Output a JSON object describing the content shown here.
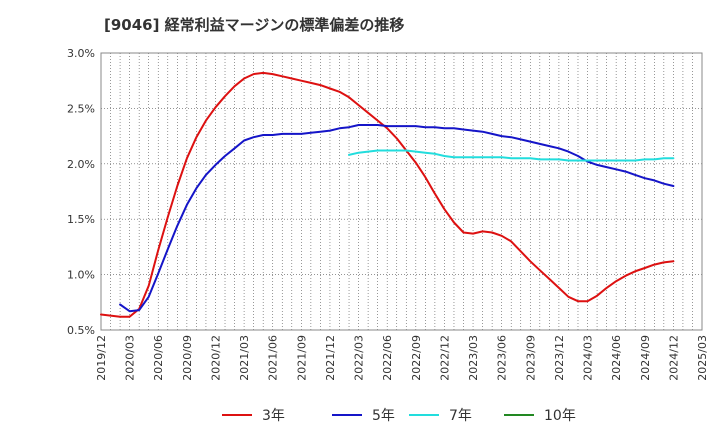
{
  "title": "[9046]  経常利益マージンの標準偏差の推移",
  "chart_data": {
    "type": "line",
    "title": "[9046]  経常利益マージンの標準偏差の推移",
    "xlabel": "",
    "ylabel": "",
    "x_ticks": [
      "2019/12",
      "2020/03",
      "2020/06",
      "2020/09",
      "2020/12",
      "2021/03",
      "2021/06",
      "2021/09",
      "2021/12",
      "2022/03",
      "2022/06",
      "2022/09",
      "2022/12",
      "2023/03",
      "2023/06",
      "2023/09",
      "2023/12",
      "2024/03",
      "2024/06",
      "2024/09",
      "2024/12",
      "2025/03"
    ],
    "y_ticks": [
      "0.5%",
      "1.0%",
      "1.5%",
      "2.0%",
      "2.5%",
      "3.0%"
    ],
    "xlim": [
      "2019/12",
      "2025/03"
    ],
    "ylim": [
      0.5,
      3.0
    ],
    "grid": true,
    "legend_position": "bottom",
    "series": [
      {
        "name": "3年",
        "color": "#dd1111",
        "points": [
          [
            "2019/12",
            0.64
          ],
          [
            "2020/01",
            0.63
          ],
          [
            "2020/02",
            0.62
          ],
          [
            "2020/03",
            0.62
          ],
          [
            "2020/04",
            0.69
          ],
          [
            "2020/05",
            0.9
          ],
          [
            "2020/06",
            1.22
          ],
          [
            "2020/07",
            1.52
          ],
          [
            "2020/08",
            1.8
          ],
          [
            "2020/09",
            2.05
          ],
          [
            "2020/10",
            2.24
          ],
          [
            "2020/11",
            2.39
          ],
          [
            "2020/12",
            2.51
          ],
          [
            "2021/01",
            2.61
          ],
          [
            "2021/02",
            2.7
          ],
          [
            "2021/03",
            2.77
          ],
          [
            "2021/04",
            2.81
          ],
          [
            "2021/05",
            2.82
          ],
          [
            "2021/06",
            2.81
          ],
          [
            "2021/07",
            2.79
          ],
          [
            "2021/08",
            2.77
          ],
          [
            "2021/09",
            2.75
          ],
          [
            "2021/10",
            2.73
          ],
          [
            "2021/11",
            2.71
          ],
          [
            "2021/12",
            2.68
          ],
          [
            "2022/01",
            2.65
          ],
          [
            "2022/02",
            2.6
          ],
          [
            "2022/03",
            2.53
          ],
          [
            "2022/04",
            2.46
          ],
          [
            "2022/05",
            2.39
          ],
          [
            "2022/06",
            2.32
          ],
          [
            "2022/07",
            2.23
          ],
          [
            "2022/08",
            2.12
          ],
          [
            "2022/09",
            2.01
          ],
          [
            "2022/10",
            1.88
          ],
          [
            "2022/11",
            1.73
          ],
          [
            "2022/12",
            1.59
          ],
          [
            "2023/01",
            1.47
          ],
          [
            "2023/02",
            1.38
          ],
          [
            "2023/03",
            1.37
          ],
          [
            "2023/04",
            1.39
          ],
          [
            "2023/05",
            1.38
          ],
          [
            "2023/06",
            1.35
          ],
          [
            "2023/07",
            1.3
          ],
          [
            "2023/08",
            1.21
          ],
          [
            "2023/09",
            1.12
          ],
          [
            "2023/10",
            1.04
          ],
          [
            "2023/11",
            0.96
          ],
          [
            "2023/12",
            0.88
          ],
          [
            "2024/01",
            0.8
          ],
          [
            "2024/02",
            0.76
          ],
          [
            "2024/03",
            0.76
          ],
          [
            "2024/04",
            0.81
          ],
          [
            "2024/05",
            0.88
          ],
          [
            "2024/06",
            0.94
          ],
          [
            "2024/07",
            0.99
          ],
          [
            "2024/08",
            1.03
          ],
          [
            "2024/09",
            1.06
          ],
          [
            "2024/10",
            1.09
          ],
          [
            "2024/11",
            1.11
          ],
          [
            "2024/12",
            1.12
          ]
        ]
      },
      {
        "name": "5年",
        "color": "#1515c8",
        "points": [
          [
            "2020/02",
            0.73
          ],
          [
            "2020/03",
            0.67
          ],
          [
            "2020/04",
            0.68
          ],
          [
            "2020/05",
            0.8
          ],
          [
            "2020/06",
            1.01
          ],
          [
            "2020/07",
            1.23
          ],
          [
            "2020/08",
            1.44
          ],
          [
            "2020/09",
            1.63
          ],
          [
            "2020/10",
            1.78
          ],
          [
            "2020/11",
            1.9
          ],
          [
            "2020/12",
            1.99
          ],
          [
            "2021/01",
            2.07
          ],
          [
            "2021/02",
            2.14
          ],
          [
            "2021/03",
            2.21
          ],
          [
            "2021/04",
            2.24
          ],
          [
            "2021/05",
            2.26
          ],
          [
            "2021/06",
            2.26
          ],
          [
            "2021/07",
            2.27
          ],
          [
            "2021/08",
            2.27
          ],
          [
            "2021/09",
            2.27
          ],
          [
            "2021/10",
            2.28
          ],
          [
            "2021/11",
            2.29
          ],
          [
            "2021/12",
            2.3
          ],
          [
            "2022/01",
            2.32
          ],
          [
            "2022/02",
            2.33
          ],
          [
            "2022/03",
            2.35
          ],
          [
            "2022/04",
            2.35
          ],
          [
            "2022/05",
            2.35
          ],
          [
            "2022/06",
            2.34
          ],
          [
            "2022/07",
            2.34
          ],
          [
            "2022/08",
            2.34
          ],
          [
            "2022/09",
            2.34
          ],
          [
            "2022/10",
            2.33
          ],
          [
            "2022/11",
            2.33
          ],
          [
            "2022/12",
            2.32
          ],
          [
            "2023/01",
            2.32
          ],
          [
            "2023/02",
            2.31
          ],
          [
            "2023/03",
            2.3
          ],
          [
            "2023/04",
            2.29
          ],
          [
            "2023/05",
            2.27
          ],
          [
            "2023/06",
            2.25
          ],
          [
            "2023/07",
            2.24
          ],
          [
            "2023/08",
            2.22
          ],
          [
            "2023/09",
            2.2
          ],
          [
            "2023/10",
            2.18
          ],
          [
            "2023/11",
            2.16
          ],
          [
            "2023/12",
            2.14
          ],
          [
            "2024/01",
            2.11
          ],
          [
            "2024/02",
            2.07
          ],
          [
            "2024/03",
            2.02
          ],
          [
            "2024/04",
            1.99
          ],
          [
            "2024/05",
            1.97
          ],
          [
            "2024/06",
            1.95
          ],
          [
            "2024/07",
            1.93
          ],
          [
            "2024/08",
            1.9
          ],
          [
            "2024/09",
            1.87
          ],
          [
            "2024/10",
            1.85
          ],
          [
            "2024/11",
            1.82
          ],
          [
            "2024/12",
            1.8
          ]
        ]
      },
      {
        "name": "7年",
        "color": "#22dddd",
        "points": [
          [
            "2022/02",
            2.08
          ],
          [
            "2022/03",
            2.1
          ],
          [
            "2022/04",
            2.11
          ],
          [
            "2022/05",
            2.12
          ],
          [
            "2022/06",
            2.12
          ],
          [
            "2022/07",
            2.12
          ],
          [
            "2022/08",
            2.12
          ],
          [
            "2022/09",
            2.11
          ],
          [
            "2022/10",
            2.1
          ],
          [
            "2022/11",
            2.09
          ],
          [
            "2022/12",
            2.07
          ],
          [
            "2023/01",
            2.06
          ],
          [
            "2023/02",
            2.06
          ],
          [
            "2023/03",
            2.06
          ],
          [
            "2023/04",
            2.06
          ],
          [
            "2023/05",
            2.06
          ],
          [
            "2023/06",
            2.06
          ],
          [
            "2023/07",
            2.05
          ],
          [
            "2023/08",
            2.05
          ],
          [
            "2023/09",
            2.05
          ],
          [
            "2023/10",
            2.04
          ],
          [
            "2023/11",
            2.04
          ],
          [
            "2023/12",
            2.04
          ],
          [
            "2024/01",
            2.03
          ],
          [
            "2024/02",
            2.03
          ],
          [
            "2024/03",
            2.03
          ],
          [
            "2024/04",
            2.03
          ],
          [
            "2024/05",
            2.03
          ],
          [
            "2024/06",
            2.03
          ],
          [
            "2024/07",
            2.03
          ],
          [
            "2024/08",
            2.03
          ],
          [
            "2024/09",
            2.04
          ],
          [
            "2024/10",
            2.04
          ],
          [
            "2024/11",
            2.05
          ],
          [
            "2024/12",
            2.05
          ]
        ]
      },
      {
        "name": "10年",
        "color": "#228822",
        "points": []
      }
    ]
  }
}
